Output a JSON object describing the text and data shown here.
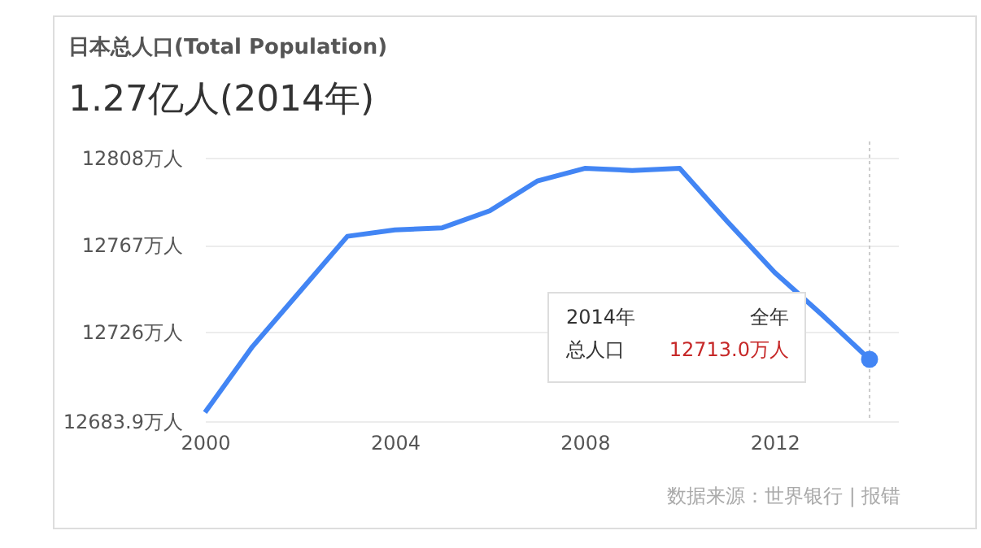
{
  "chart_data": {
    "type": "line",
    "title": "日本总人口(Total Population)",
    "subtitle": "1.27亿人(2014年)",
    "x": [
      2000,
      2001,
      2002,
      2003,
      2004,
      2005,
      2006,
      2007,
      2008,
      2009,
      2010,
      2011,
      2012,
      2013,
      2014
    ],
    "series": [
      {
        "color": "#4285f4",
        "values": [
          12688,
          12719,
          12745,
          12771,
          12774,
          12775,
          12783,
          12797,
          12803,
          12802,
          12803,
          12778,
          12754,
          12734,
          12713.0
        ]
      }
    ],
    "xlim": [
      2000,
      2014.6
    ],
    "xticks": [
      2000,
      2004,
      2008,
      2012
    ],
    "ylim": [
      12683.9,
      12808
    ],
    "yticks": [
      {
        "value": 12683.9,
        "label": "12683.9万人"
      },
      {
        "value": 12726,
        "label": "12726万人"
      },
      {
        "value": 12767,
        "label": "12767万人"
      },
      {
        "value": 12808,
        "label": "12808万人"
      }
    ],
    "grid": "y",
    "marker": "none",
    "line_style": "solid",
    "ref_lines": [
      {
        "axis": "x",
        "value": 2014,
        "color": "#cccccc",
        "line_style": "dotted"
      }
    ],
    "annotations": [
      "2014年",
      "全年",
      "总人口",
      "12713.0万人",
      "数据来源：世界银行 | 报错"
    ]
  }
}
